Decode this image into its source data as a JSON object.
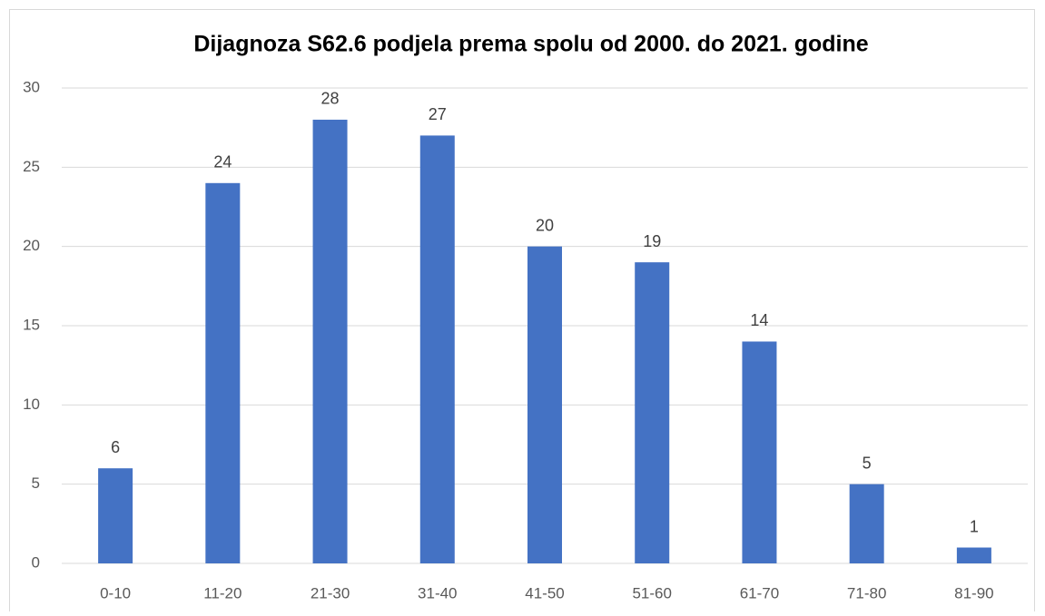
{
  "chart_data": {
    "type": "bar",
    "title": "Dijagnoza S62.6 podjela prema spolu od 2000. do 2021. godine",
    "categories": [
      "0-10",
      "11-20",
      "21-30",
      "31-40",
      "41-50",
      "51-60",
      "61-70",
      "71-80",
      "81-90"
    ],
    "values": [
      6,
      24,
      28,
      27,
      20,
      19,
      14,
      5,
      1
    ],
    "color": "#4472c4",
    "ylim": [
      0,
      30
    ],
    "yticks": [
      0,
      5,
      10,
      15,
      20,
      25,
      30
    ],
    "grid": true
  }
}
